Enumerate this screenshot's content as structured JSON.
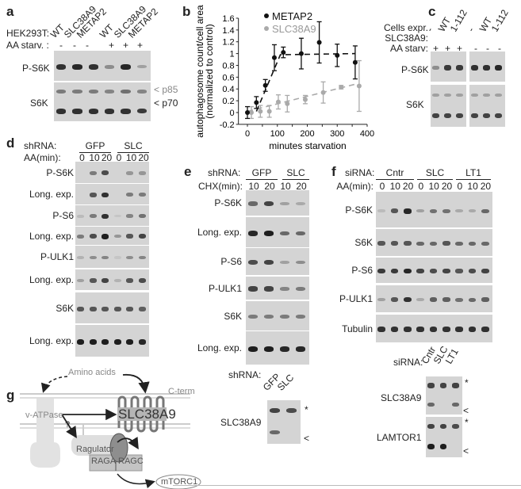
{
  "panels": {
    "a": {
      "letter": "a",
      "row1_label": "HEK293T:",
      "row2_label": "AA starv. :",
      "lanes": [
        "WT",
        "SLC38A9",
        "METAP2",
        "WT",
        "SLC38A9",
        "METAP2"
      ],
      "starv": [
        "-",
        "-",
        "-",
        "+",
        "+",
        "+"
      ],
      "blots": [
        {
          "label": "P-S6K",
          "bands": [
            [
              0.9,
              0.95,
              0.9,
              0.4,
              0.95,
              0.3
            ]
          ]
        },
        {
          "label": "S6K",
          "bands": [
            [
              0.9,
              0.9,
              0.9,
              0.9,
              0.9,
              0.85
            ]
          ]
        }
      ],
      "markers": [
        "< p85",
        "< p70"
      ]
    },
    "c": {
      "letter": "c",
      "row1_label": "Cells expr.",
      "row2_label": "SLC38A9:",
      "row3_label": "AA starv:",
      "lanes": [
        "-",
        "WT",
        "1-112",
        "-",
        "WT",
        "1-112"
      ],
      "starv": [
        "+",
        "+",
        "+",
        "-",
        "-",
        "-"
      ],
      "blots": [
        {
          "label": "P-S6K",
          "bands": [
            [
              0.4,
              0.85,
              0.85,
              0.9,
              0.9,
              0.95
            ]
          ]
        },
        {
          "label": "S6K",
          "bands": [
            [
              0.8,
              0.8,
              0.8,
              0.8,
              0.8,
              0.8
            ]
          ]
        }
      ]
    },
    "d": {
      "letter": "d",
      "shrna_label": "shRNA:",
      "groups": [
        "GFP",
        "SLC"
      ],
      "aa_label": "AA(min):",
      "times": [
        "0",
        "10",
        "20",
        "0",
        "10",
        "20"
      ],
      "blots": [
        {
          "label": "P-S6K",
          "bands": [
            [
              0,
              0.5,
              0.75,
              0,
              0.35,
              0.35
            ]
          ]
        },
        {
          "label": "Long. exp.",
          "bands": [
            [
              0,
              0.7,
              0.9,
              0,
              0.5,
              0.5
            ]
          ]
        },
        {
          "label": "P-S6",
          "bands": [
            [
              0.15,
              0.5,
              0.9,
              0.1,
              0.45,
              0.55
            ]
          ]
        },
        {
          "label": "Long. exp.",
          "bands": [
            [
              0.5,
              0.75,
              1,
              0.35,
              0.7,
              0.8
            ]
          ]
        },
        {
          "label": "P-ULK1",
          "bands": [
            [
              0.2,
              0.4,
              0.45,
              0.1,
              0.4,
              0.45
            ]
          ]
        },
        {
          "label": "Long. exp.",
          "bands": [
            [
              0.3,
              0.7,
              0.8,
              0.2,
              0.7,
              0.75
            ]
          ]
        },
        {
          "label": "S6K",
          "bands": [
            [
              0.7,
              0.7,
              0.7,
              0.7,
              0.7,
              0.65
            ]
          ]
        },
        {
          "label": "Long. exp.",
          "bands": [
            [
              1,
              1,
              1,
              1,
              1,
              0.95
            ]
          ]
        }
      ]
    },
    "e": {
      "letter": "e",
      "shrna_label": "shRNA:",
      "groups": [
        "GFP",
        "SLC"
      ],
      "chx_label": "CHX(min):",
      "times": [
        "10",
        "20",
        "10",
        "20"
      ],
      "blots": [
        {
          "label": "P-S6K",
          "bands": [
            [
              0.6,
              0.8,
              0.3,
              0.25
            ]
          ]
        },
        {
          "label": "Long. exp.",
          "bands": [
            [
              0.95,
              1,
              0.6,
              0.6
            ]
          ]
        },
        {
          "label": "P-S6",
          "bands": [
            [
              0.75,
              0.8,
              0.3,
              0.4
            ]
          ]
        },
        {
          "label": "P-ULK1",
          "bands": [
            [
              0.8,
              0.8,
              0.45,
              0.5
            ]
          ]
        },
        {
          "label": "S6K",
          "bands": [
            [
              0.5,
              0.5,
              0.5,
              0.5
            ]
          ]
        },
        {
          "label": "Long. exp.",
          "bands": [
            [
              1,
              1,
              0.95,
              0.95
            ]
          ]
        }
      ],
      "lower": {
        "shrna_label": "shRNA:",
        "lanes": [
          "GFP",
          "SLC"
        ],
        "label": "SLC38A9",
        "star": "*",
        "arrow": "<",
        "bands": [
          [
            0.8,
            0.75
          ],
          [
            0.6,
            0
          ]
        ]
      }
    },
    "f": {
      "letter": "f",
      "sirna_label": "siRNA:",
      "groups": [
        "Cntr",
        "SLC",
        "LT1"
      ],
      "aa_label": "AA(min):",
      "times": [
        "0",
        "10",
        "20",
        "0",
        "10",
        "20",
        "0",
        "10",
        "20"
      ],
      "blots": [
        {
          "label": "P-S6K",
          "bands": [
            [
              0.15,
              0.7,
              0.95,
              0.3,
              0.55,
              0.55,
              0.25,
              0.25,
              0.6
            ]
          ]
        },
        {
          "label": "S6K",
          "bands": [
            [
              0.7,
              0.7,
              0.7,
              0.6,
              0.6,
              0.7,
              0.6,
              0.6,
              0.6
            ]
          ]
        },
        {
          "label": "P-S6",
          "bands": [
            [
              0.85,
              0.85,
              0.95,
              0.8,
              0.75,
              0.8,
              0.7,
              0.75,
              0.8
            ]
          ]
        },
        {
          "label": "P-ULK1",
          "bands": [
            [
              0.3,
              0.7,
              0.9,
              0.25,
              0.65,
              0.65,
              0.55,
              0.6,
              0.65
            ]
          ]
        },
        {
          "label": "Tubulin",
          "bands": [
            [
              0.9,
              0.9,
              0.9,
              0.9,
              0.9,
              0.9,
              0.9,
              0.9,
              0.9
            ]
          ]
        }
      ],
      "lower": {
        "sirna_label": "siRNA:",
        "lanes": [
          "Cntr",
          "SLC",
          "LT1"
        ],
        "blots": [
          {
            "label": "SLC38A9",
            "star": "*",
            "arrow": "<",
            "bands": [
              [
                0.8,
                0.8,
                0.8
              ],
              [
                0.6,
                0,
                0.6
              ]
            ]
          },
          {
            "label": "LAMTOR1",
            "star": "*",
            "arrow": "<",
            "bands": [
              [
                0.8,
                0.8,
                0.75
              ],
              [
                1,
                1,
                0
              ]
            ]
          }
        ]
      }
    },
    "g": {
      "letter": "g",
      "amino_acids": "Amino acids",
      "cterm": "C-term",
      "vatpase": "v-ATPase",
      "question": "?",
      "slc": "SLC38A9",
      "ragulator": "Ragulator",
      "raga": "RAGA",
      "ragc": "RAGC",
      "mtorc1": "mTORC1"
    }
  },
  "chart_data": {
    "type": "scatter",
    "letter": "b",
    "xlabel": "minutes starvation",
    "ylabel": "autophagosome count/cell area",
    "ylabel2": "(normalized to control)",
    "xlim": [
      -30,
      400
    ],
    "ylim": [
      -0.2,
      1.6
    ],
    "xticks": [
      0,
      100,
      200,
      300,
      400
    ],
    "yticks": [
      -0.2,
      0,
      0.2,
      0.4,
      0.6,
      0.8,
      1,
      1.2,
      1.4,
      1.6
    ],
    "ytick_labels": [
      "-0.2",
      "0",
      "0.2",
      "0.4",
      "0.6",
      "0.8",
      "1",
      "1.2",
      "1.4",
      "1.6"
    ],
    "legend": "top-left",
    "series": [
      {
        "name": "METAP2",
        "color": "#111111",
        "x": [
          0,
          30,
          60,
          90,
          120,
          180,
          240,
          300,
          360
        ],
        "y": [
          0,
          0.17,
          0.46,
          0.93,
          1.02,
          1.0,
          1.19,
          0.97,
          0.85
        ],
        "err": [
          0.1,
          0.1,
          0.1,
          0.22,
          0.09,
          0.26,
          0.35,
          0.19,
          0.28
        ],
        "fit": [
          [
            30,
            0.02
          ],
          [
            110,
            0.98
          ],
          [
            360,
            1.0
          ]
        ]
      },
      {
        "name": "SLC38A9",
        "color": "#aaaaaa",
        "x": [
          0,
          30,
          60,
          90,
          120,
          180,
          240,
          300,
          360
        ],
        "y": [
          0,
          0.02,
          0.02,
          0.18,
          0.15,
          0.22,
          0.34,
          0.43,
          0.45
        ],
        "err": [
          0.1,
          0.1,
          0.1,
          0.12,
          0.14,
          0.07,
          0.18,
          0.03,
          0.43
        ],
        "fit": [
          [
            0,
            0.02
          ],
          [
            360,
            0.48
          ]
        ]
      }
    ]
  }
}
